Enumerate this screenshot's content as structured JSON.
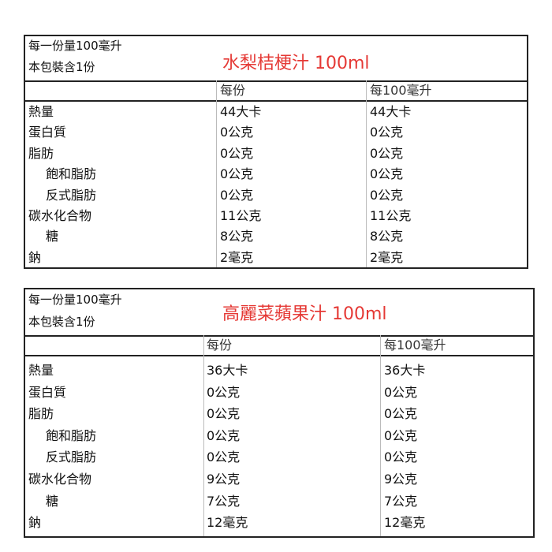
{
  "labels": [
    {
      "serving_size": "每一份量100毫升",
      "servings_per_package": "本包裝含1份",
      "product_title": "水梨桔梗汁 100ml",
      "columns": [
        "",
        "每份",
        "每100毫升"
      ],
      "rows": [
        {
          "name": "熱量",
          "per_serving": "44大卡",
          "per_100ml": "44大卡"
        },
        {
          "name": "蛋白質",
          "per_serving": "0公克",
          "per_100ml": "0公克"
        },
        {
          "name": "脂肪",
          "per_serving": "0公克",
          "per_100ml": "0公克"
        },
        {
          "name": "飽和脂肪",
          "per_serving": "0公克",
          "per_100ml": "0公克"
        },
        {
          "name": "反式脂肪",
          "per_serving": "0公克",
          "per_100ml": "0公克"
        },
        {
          "name": "碳水化合物",
          "per_serving": "11公克",
          "per_100ml": "11公克"
        },
        {
          "name": "糖",
          "per_serving": "8公克",
          "per_100ml": "8公克"
        },
        {
          "name": "鈉",
          "per_serving": "2毫克",
          "per_100ml": "2毫克"
        }
      ]
    },
    {
      "serving_size": "每一份量100毫升",
      "servings_per_package": "本包裝含1份",
      "product_title": "高麗菜蘋果汁 100ml",
      "columns": [
        "",
        "每份",
        "每100毫升"
      ],
      "rows": [
        {
          "name": "熱量",
          "per_serving": "36大卡",
          "per_100ml": "36大卡"
        },
        {
          "name": "蛋白質",
          "per_serving": "0公克",
          "per_100ml": "0公克"
        },
        {
          "name": "脂肪",
          "per_serving": "0公克",
          "per_100ml": "0公克"
        },
        {
          "name": "飽和脂肪",
          "per_serving": "0公克",
          "per_100ml": "0公克"
        },
        {
          "name": "反式脂肪",
          "per_serving": "0公克",
          "per_100ml": "0公克"
        },
        {
          "name": "碳水化合物",
          "per_serving": "9公克",
          "per_100ml": "9公克"
        },
        {
          "name": "糖",
          "per_serving": "7公克",
          "per_100ml": "7公克"
        },
        {
          "name": "鈉",
          "per_serving": "12毫克",
          "per_100ml": "12毫克"
        }
      ]
    }
  ],
  "colors": {
    "title": "#e53935",
    "border": "#222222"
  }
}
